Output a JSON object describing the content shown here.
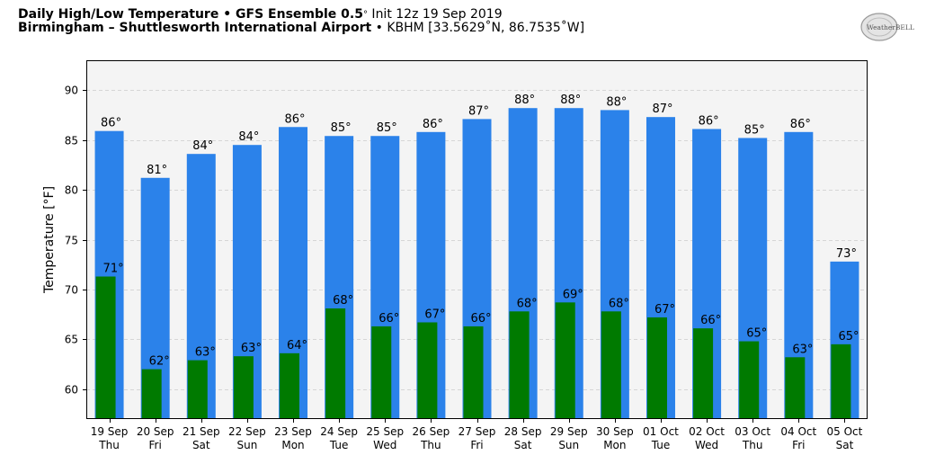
{
  "header": {
    "title_bold": "Daily High/Low Temperature • GFS Ensemble 0.5",
    "title_deg": "°",
    "title_init": " Init 12z 19 Sep 2019",
    "subtitle_bold": "Birmingham – Shuttlesworth International Airport",
    "subtitle_rest": " • KBHM [33.5629˚N, 86.7535˚W]"
  },
  "logo": {
    "text": "WeatherBELL"
  },
  "colors": {
    "high": "#2b82ea",
    "low": "#007a00",
    "plot_bg": "#f4f4f4",
    "grid": "#d6d6d6"
  },
  "chart_data": {
    "type": "bar",
    "ylabel": "Temperature [°F]",
    "ylim": [
      57,
      93
    ],
    "yticks": [
      60,
      65,
      70,
      75,
      80,
      85,
      90
    ],
    "grid": true,
    "categories": [
      "19 Sep\nThu",
      "20 Sep\nFri",
      "21 Sep\nSat",
      "22 Sep\nSun",
      "23 Sep\nMon",
      "24 Sep\nTue",
      "25 Sep\nWed",
      "26 Sep\nThu",
      "27 Sep\nFri",
      "28 Sep\nSat",
      "29 Sep\nSun",
      "30 Sep\nMon",
      "01 Oct\nTue",
      "02 Oct\nWed",
      "03 Oct\nThu",
      "04 Oct\nFri",
      "05 Oct\nSat"
    ],
    "series": [
      {
        "values": [
          85.9,
          81.2,
          83.6,
          84.5,
          86.3,
          85.4,
          85.4,
          85.8,
          87.1,
          88.2,
          88.2,
          88.0,
          87.3,
          86.1,
          85.2,
          85.8,
          72.8
        ],
        "labels": [
          "86°",
          "81°",
          "84°",
          "84°",
          "86°",
          "85°",
          "85°",
          "86°",
          "87°",
          "88°",
          "88°",
          "88°",
          "87°",
          "86°",
          "85°",
          "86°",
          "73°"
        ]
      },
      {
        "values": [
          71.3,
          62.0,
          62.9,
          63.3,
          63.6,
          68.1,
          66.3,
          66.7,
          66.3,
          67.8,
          68.7,
          67.8,
          67.2,
          66.1,
          64.8,
          63.2,
          64.5
        ],
        "labels": [
          "71°",
          "62°",
          "63°",
          "63°",
          "64°",
          "68°",
          "66°",
          "67°",
          "66°",
          "68°",
          "69°",
          "68°",
          "67°",
          "66°",
          "65°",
          "63°",
          "65°"
        ]
      }
    ]
  }
}
